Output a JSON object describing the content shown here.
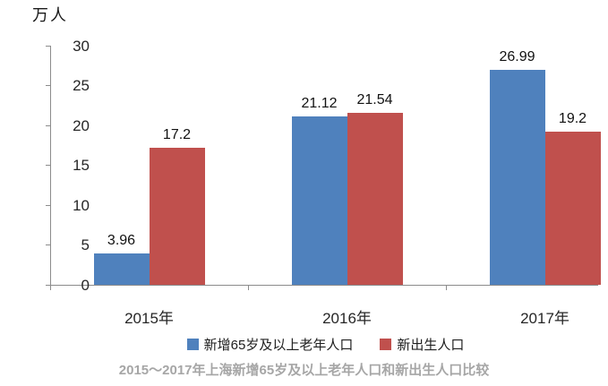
{
  "unit_label": "万人",
  "caption": "2015～2017年上海新增65岁及以上老年人口和新出生人口比较",
  "colors": {
    "series1": "#4F81BD",
    "series2": "#C0504D",
    "axis": "#8C8C8C",
    "caption_text": "#A6A6A6"
  },
  "chart_data": {
    "type": "bar",
    "title": "2015～2017年上海新增65岁及以上老年人口和新出生人口比较",
    "unit": "万人",
    "categories": [
      "2015年",
      "2016年",
      "2017年"
    ],
    "series": [
      {
        "name": "新增65岁及以上老年人口",
        "color": "#4F81BD",
        "values": [
          3.96,
          21.12,
          26.99
        ]
      },
      {
        "name": "新出生人口",
        "color": "#C0504D",
        "values": [
          17.2,
          21.54,
          19.2
        ]
      }
    ],
    "ylim": [
      0,
      30
    ],
    "yticks": [
      0,
      5,
      10,
      15,
      20,
      25,
      30
    ],
    "grid": false,
    "legend_position": "bottom",
    "data_labels": true
  }
}
